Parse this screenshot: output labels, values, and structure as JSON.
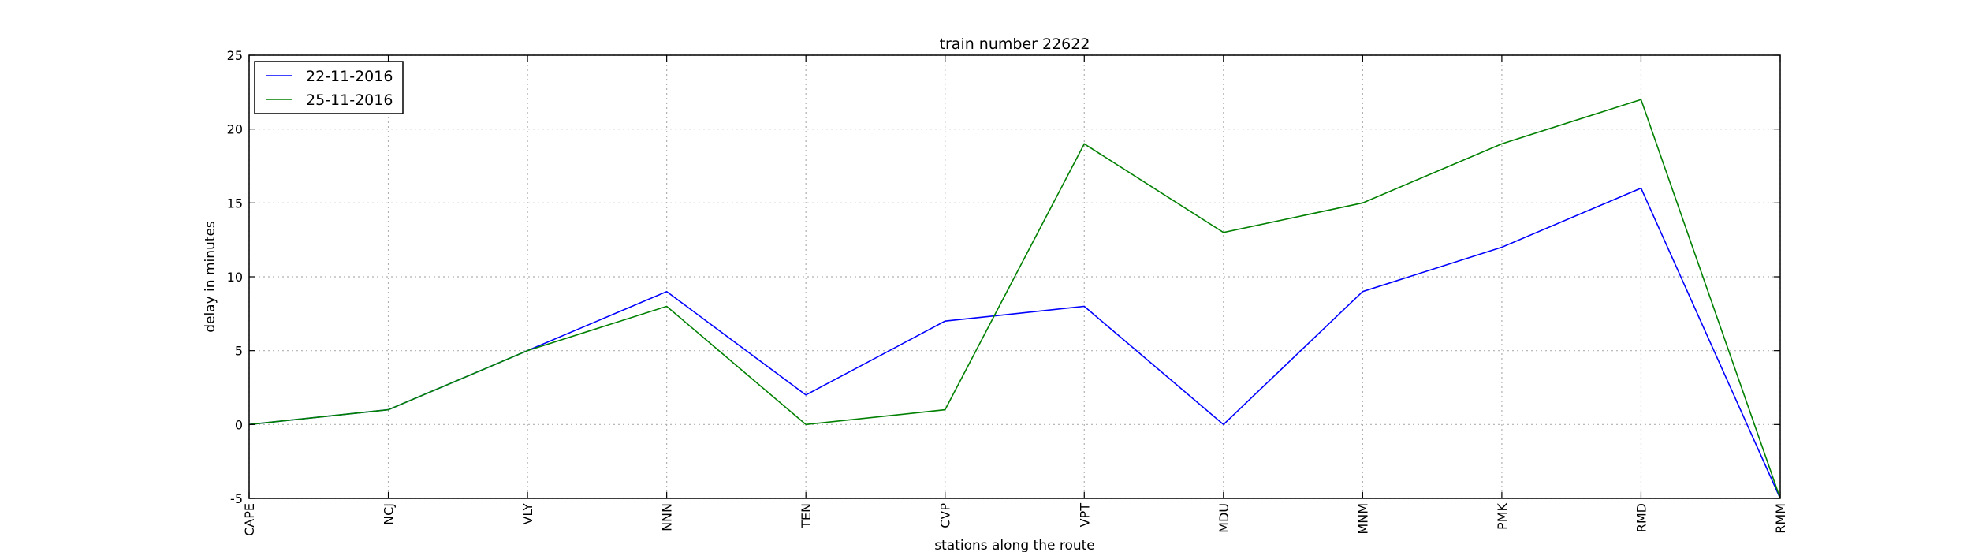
{
  "chart_data": {
    "type": "line",
    "title": "train number 22622",
    "xlabel": "stations along the route",
    "ylabel": "delay in minutes",
    "categories": [
      "CAPE",
      "NCJ",
      "VLY",
      "NNN",
      "TEN",
      "CVP",
      "VPT",
      "MDU",
      "MNM",
      "PMK",
      "RMD",
      "RMM"
    ],
    "ylim": [
      -5,
      25
    ],
    "yticks": [
      -5,
      0,
      5,
      10,
      15,
      20,
      25
    ],
    "grid": true,
    "legend_position": "top-left",
    "series": [
      {
        "name": "22-11-2016",
        "color": "#0000ff",
        "values": [
          0,
          1,
          5,
          9,
          2,
          7,
          8,
          0,
          9,
          12,
          16,
          -5
        ]
      },
      {
        "name": "25-11-2016",
        "color": "#008000",
        "values": [
          0,
          1,
          5,
          8,
          0,
          1,
          19,
          13,
          15,
          19,
          22,
          -5
        ]
      }
    ]
  }
}
